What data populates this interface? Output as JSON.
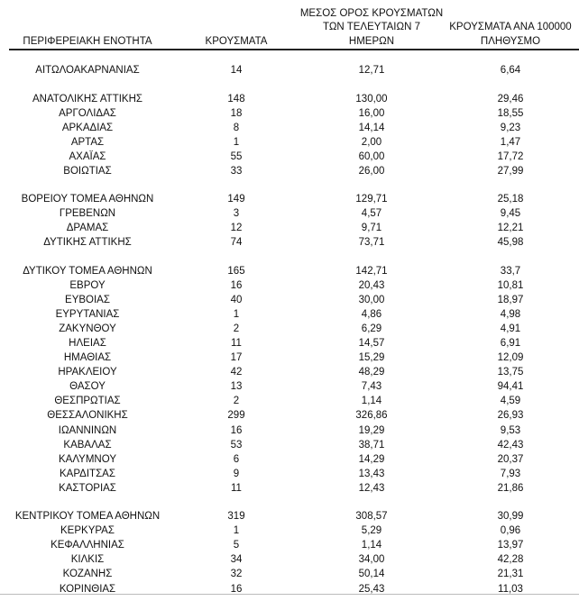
{
  "headers": {
    "region": "ΠΕΡΙΦΕΡΕΙΑΚΗ ΕΝΟΤΗΤΑ",
    "cases": "ΚΡΟΥΣΜΑΤΑ",
    "avg7_line1": "ΜΕΣΟΣ ΟΡΟΣ ΚΡΟΥΣΜΑΤΩΝ",
    "avg7_line2": "ΤΩΝ ΤΕΛΕΥΤΑΙΩΝ 7",
    "avg7_line3": "ΗΜΕΡΩΝ",
    "per100k_line1": "ΚΡΟΥΣΜΑΤΑ ΑΝΑ 100000",
    "per100k_line2": "ΠΛΗΘΥΣΜΟ"
  },
  "groups": [
    [
      [
        "ΑΙΤΩΛΟΑΚΑΡΝΑΝΙΑΣ",
        "14",
        "12,71",
        "6,64"
      ]
    ],
    [
      [
        "ΑΝΑΤΟΛΙΚΗΣ ΑΤΤΙΚΗΣ",
        "148",
        "130,00",
        "29,46"
      ],
      [
        "ΑΡΓΟΛΙΔΑΣ",
        "18",
        "16,00",
        "18,55"
      ],
      [
        "ΑΡΚΑΔΙΑΣ",
        "8",
        "14,14",
        "9,23"
      ],
      [
        "ΑΡΤΑΣ",
        "1",
        "2,00",
        "1,47"
      ],
      [
        "ΑΧΑΪΑΣ",
        "55",
        "60,00",
        "17,72"
      ],
      [
        "ΒΟΙΩΤΙΑΣ",
        "33",
        "26,00",
        "27,99"
      ]
    ],
    [
      [
        "ΒΟΡΕΙΟΥ ΤΟΜΕΑ ΑΘΗΝΩΝ",
        "149",
        "129,71",
        "25,18"
      ],
      [
        "ΓΡΕΒΕΝΩΝ",
        "3",
        "4,57",
        "9,45"
      ],
      [
        "ΔΡΑΜΑΣ",
        "12",
        "9,71",
        "12,21"
      ],
      [
        "ΔΥΤΙΚΗΣ ΑΤΤΙΚΗΣ",
        "74",
        "73,71",
        "45,98"
      ]
    ],
    [
      [
        "ΔΥΤΙΚΟΥ ΤΟΜΕΑ ΑΘΗΝΩΝ",
        "165",
        "142,71",
        "33,7"
      ],
      [
        "ΕΒΡΟΥ",
        "16",
        "20,43",
        "10,81"
      ],
      [
        "ΕΥΒΟΙΑΣ",
        "40",
        "30,00",
        "18,97"
      ],
      [
        "ΕΥΡΥΤΑΝΙΑΣ",
        "1",
        "4,86",
        "4,98"
      ],
      [
        "ΖΑΚΥΝΘΟΥ",
        "2",
        "6,29",
        "4,91"
      ],
      [
        "ΗΛΕΙΑΣ",
        "11",
        "14,57",
        "6,91"
      ],
      [
        "ΗΜΑΘΙΑΣ",
        "17",
        "15,29",
        "12,09"
      ],
      [
        "ΗΡΑΚΛΕΙΟΥ",
        "42",
        "48,29",
        "13,75"
      ],
      [
        "ΘΑΣΟΥ",
        "13",
        "7,43",
        "94,41"
      ],
      [
        "ΘΕΣΠΡΩΤΙΑΣ",
        "2",
        "1,14",
        "4,59"
      ],
      [
        "ΘΕΣΣΑΛΟΝΙΚΗΣ",
        "299",
        "326,86",
        "26,93"
      ],
      [
        "ΙΩΑΝΝΙΝΩΝ",
        "16",
        "19,29",
        "9,53"
      ],
      [
        "ΚΑΒΑΛΑΣ",
        "53",
        "38,71",
        "42,43"
      ],
      [
        "ΚΑΛΥΜΝΟΥ",
        "6",
        "14,29",
        "20,37"
      ],
      [
        "ΚΑΡΔΙΤΣΑΣ",
        "9",
        "13,43",
        "7,93"
      ],
      [
        "ΚΑΣΤΟΡΙΑΣ",
        "11",
        "12,43",
        "21,86"
      ]
    ],
    [
      [
        "ΚΕΝΤΡΙΚΟΥ ΤΟΜΕΑ ΑΘΗΝΩΝ",
        "319",
        "308,57",
        "30,99"
      ],
      [
        "ΚΕΡΚΥΡΑΣ",
        "1",
        "5,29",
        "0,96"
      ],
      [
        "ΚΕΦΑΛΛΗΝΙΑΣ",
        "5",
        "1,14",
        "13,97"
      ],
      [
        "ΚΙΛΚΙΣ",
        "34",
        "34,00",
        "42,28"
      ],
      [
        "ΚΟΖΑΝΗΣ",
        "32",
        "50,14",
        "21,31"
      ],
      [
        "ΚΟΡΙΝΘΙΑΣ",
        "16",
        "25,43",
        "11,03"
      ]
    ]
  ]
}
